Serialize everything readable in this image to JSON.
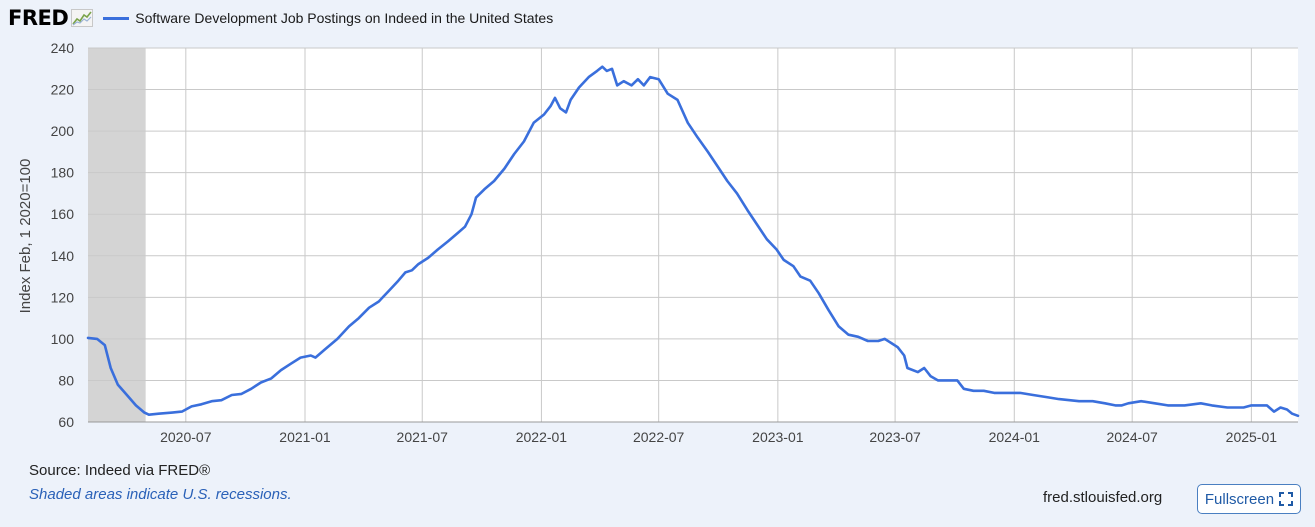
{
  "header": {
    "logo_text": "FRED",
    "legend_label": "Software Development Job Postings on Indeed in the United States"
  },
  "colors": {
    "series": "#3a6fdc",
    "recession_shade": "#d4d4d4",
    "background": "#edf2fa",
    "plot_background": "#ffffff"
  },
  "footer": {
    "source": "Source: Indeed via FRED®",
    "recession_note": "Shaded areas indicate U.S. recessions.",
    "site": "fred.stlouisfed.org",
    "fullscreen_label": "Fullscreen"
  },
  "chart_data": {
    "type": "line",
    "ylabel": "Index Feb, 1 2020=100",
    "ylim": [
      60,
      240
    ],
    "xlim": [
      "2020-02-01",
      "2025-03-14"
    ],
    "y_ticks": [
      60,
      80,
      100,
      120,
      140,
      160,
      180,
      200,
      220,
      240
    ],
    "x_ticks": [
      "2020-07",
      "2021-01",
      "2021-07",
      "2022-01",
      "2022-07",
      "2023-01",
      "2023-07",
      "2024-01",
      "2024-07",
      "2025-01"
    ],
    "grid": true,
    "recessions": [
      {
        "start": "2020-02-01",
        "end": "2020-04-30"
      }
    ],
    "series": [
      {
        "name": "Software Development Job Postings on Indeed in the United States",
        "points": [
          [
            "2020-02-01",
            100.5
          ],
          [
            "2020-02-15",
            100
          ],
          [
            "2020-02-27",
            97
          ],
          [
            "2020-03-07",
            86
          ],
          [
            "2020-03-18",
            78
          ],
          [
            "2020-04-01",
            73
          ],
          [
            "2020-04-15",
            68
          ],
          [
            "2020-04-28",
            64.5
          ],
          [
            "2020-05-05",
            63.5
          ],
          [
            "2020-05-20",
            64
          ],
          [
            "2020-06-10",
            64.5
          ],
          [
            "2020-06-25",
            65
          ],
          [
            "2020-07-10",
            67.5
          ],
          [
            "2020-07-25",
            68.5
          ],
          [
            "2020-08-10",
            70
          ],
          [
            "2020-08-25",
            70.5
          ],
          [
            "2020-09-10",
            73
          ],
          [
            "2020-09-25",
            73.5
          ],
          [
            "2020-10-10",
            76
          ],
          [
            "2020-10-25",
            79
          ],
          [
            "2020-11-10",
            81
          ],
          [
            "2020-11-25",
            85
          ],
          [
            "2020-12-10",
            88
          ],
          [
            "2020-12-25",
            91
          ],
          [
            "2021-01-10",
            92
          ],
          [
            "2021-01-17",
            91
          ],
          [
            "2021-02-01",
            95
          ],
          [
            "2021-02-20",
            100
          ],
          [
            "2021-03-10",
            106
          ],
          [
            "2021-03-25",
            110
          ],
          [
            "2021-04-10",
            115
          ],
          [
            "2021-04-25",
            118
          ],
          [
            "2021-05-10",
            123
          ],
          [
            "2021-05-25",
            128
          ],
          [
            "2021-06-05",
            132
          ],
          [
            "2021-06-15",
            133
          ],
          [
            "2021-06-25",
            136
          ],
          [
            "2021-07-10",
            139
          ],
          [
            "2021-07-25",
            143
          ],
          [
            "2021-08-10",
            147
          ],
          [
            "2021-08-25",
            151
          ],
          [
            "2021-09-05",
            154
          ],
          [
            "2021-09-15",
            160
          ],
          [
            "2021-09-22",
            168
          ],
          [
            "2021-10-05",
            172
          ],
          [
            "2021-10-20",
            176
          ],
          [
            "2021-11-05",
            182
          ],
          [
            "2021-11-20",
            189
          ],
          [
            "2021-12-05",
            195
          ],
          [
            "2021-12-20",
            204
          ],
          [
            "2022-01-05",
            208
          ],
          [
            "2022-01-15",
            212
          ],
          [
            "2022-01-22",
            216
          ],
          [
            "2022-01-30",
            211
          ],
          [
            "2022-02-08",
            209
          ],
          [
            "2022-02-15",
            215
          ],
          [
            "2022-02-28",
            221
          ],
          [
            "2022-03-15",
            226
          ],
          [
            "2022-03-28",
            229
          ],
          [
            "2022-04-05",
            231
          ],
          [
            "2022-04-12",
            229
          ],
          [
            "2022-04-20",
            230
          ],
          [
            "2022-04-28",
            222
          ],
          [
            "2022-05-08",
            224
          ],
          [
            "2022-05-20",
            222
          ],
          [
            "2022-05-30",
            225
          ],
          [
            "2022-06-08",
            222
          ],
          [
            "2022-06-18",
            226
          ],
          [
            "2022-07-01",
            225
          ],
          [
            "2022-07-15",
            218
          ],
          [
            "2022-07-30",
            215
          ],
          [
            "2022-08-15",
            204
          ],
          [
            "2022-08-30",
            197
          ],
          [
            "2022-09-15",
            190
          ],
          [
            "2022-09-30",
            183
          ],
          [
            "2022-10-15",
            176
          ],
          [
            "2022-10-30",
            170
          ],
          [
            "2022-11-15",
            162
          ],
          [
            "2022-11-30",
            155
          ],
          [
            "2022-12-15",
            148
          ],
          [
            "2022-12-30",
            143
          ],
          [
            "2023-01-10",
            138
          ],
          [
            "2023-01-25",
            135
          ],
          [
            "2023-02-05",
            130
          ],
          [
            "2023-02-20",
            128
          ],
          [
            "2023-03-05",
            122
          ],
          [
            "2023-03-20",
            114
          ],
          [
            "2023-04-05",
            106
          ],
          [
            "2023-04-20",
            102
          ],
          [
            "2023-05-05",
            101
          ],
          [
            "2023-05-20",
            99
          ],
          [
            "2023-06-05",
            99
          ],
          [
            "2023-06-15",
            100
          ],
          [
            "2023-06-25",
            98
          ],
          [
            "2023-07-05",
            96
          ],
          [
            "2023-07-15",
            92
          ],
          [
            "2023-07-20",
            86
          ],
          [
            "2023-08-05",
            84
          ],
          [
            "2023-08-15",
            86
          ],
          [
            "2023-08-25",
            82
          ],
          [
            "2023-09-05",
            80
          ],
          [
            "2023-09-20",
            80
          ],
          [
            "2023-10-05",
            80
          ],
          [
            "2023-10-15",
            76
          ],
          [
            "2023-10-30",
            75
          ],
          [
            "2023-11-15",
            75
          ],
          [
            "2023-12-01",
            74
          ],
          [
            "2023-12-20",
            74
          ],
          [
            "2024-01-10",
            74
          ],
          [
            "2024-01-30",
            73
          ],
          [
            "2024-02-20",
            72
          ],
          [
            "2024-03-10",
            71
          ],
          [
            "2024-04-10",
            70
          ],
          [
            "2024-05-01",
            70
          ],
          [
            "2024-05-20",
            69
          ],
          [
            "2024-06-05",
            68
          ],
          [
            "2024-06-15",
            68
          ],
          [
            "2024-06-25",
            69
          ],
          [
            "2024-07-15",
            70
          ],
          [
            "2024-08-05",
            69
          ],
          [
            "2024-08-25",
            68
          ],
          [
            "2024-09-20",
            68
          ],
          [
            "2024-10-15",
            69
          ],
          [
            "2024-11-01",
            68
          ],
          [
            "2024-11-25",
            67
          ],
          [
            "2024-12-20",
            67
          ],
          [
            "2025-01-01",
            68
          ],
          [
            "2025-01-25",
            68
          ],
          [
            "2025-02-05",
            65
          ],
          [
            "2025-02-15",
            67
          ],
          [
            "2025-02-25",
            66
          ],
          [
            "2025-03-05",
            64
          ],
          [
            "2025-03-14",
            63
          ]
        ]
      }
    ]
  }
}
